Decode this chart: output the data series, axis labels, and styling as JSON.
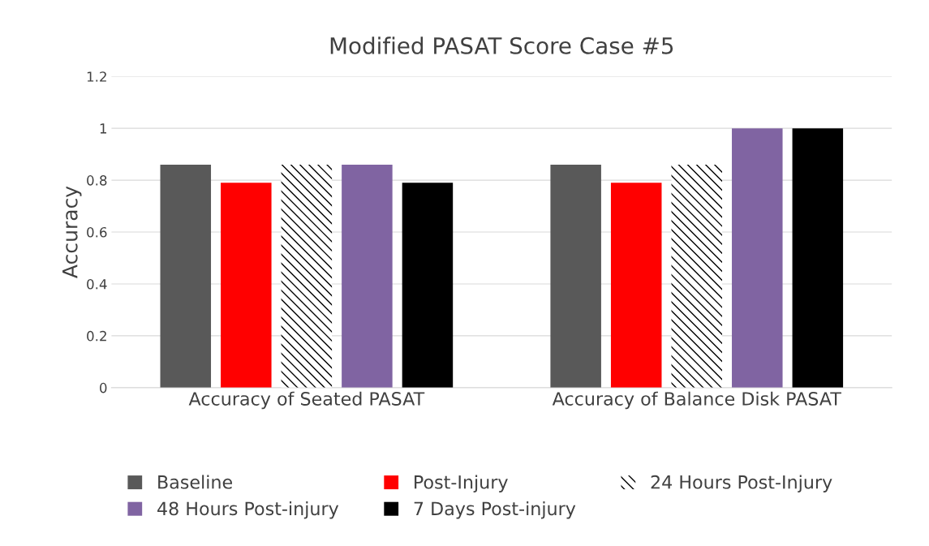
{
  "chart_data": {
    "type": "bar",
    "title": "Modified PASAT Score Case #5",
    "ylabel": "Accuracy",
    "categories": [
      "Accuracy of Seated PASAT",
      "Accuracy of Balance Disk PASAT"
    ],
    "series": [
      {
        "name": "Baseline",
        "color": "#595959",
        "values": [
          0.86,
          0.86
        ]
      },
      {
        "name": "Post-Injury",
        "color": "#ff0000",
        "values": [
          0.79,
          0.79
        ]
      },
      {
        "name": "24 Hours Post-Injury",
        "color": "#000000",
        "values": [
          0.86,
          0.86
        ]
      },
      {
        "name": "48 Hours Post-injury",
        "color": "#8064a2",
        "values": [
          0.86,
          1
        ]
      },
      {
        "name": "7 Days Post-injury",
        "color": "#000000",
        "values": [
          0.79,
          1
        ]
      }
    ],
    "ylim": [
      0,
      1.2
    ],
    "yticks": [
      0,
      0.2,
      0.4,
      0.6,
      0.8,
      1,
      1.2
    ],
    "grid": "y",
    "legend": "bottom"
  }
}
